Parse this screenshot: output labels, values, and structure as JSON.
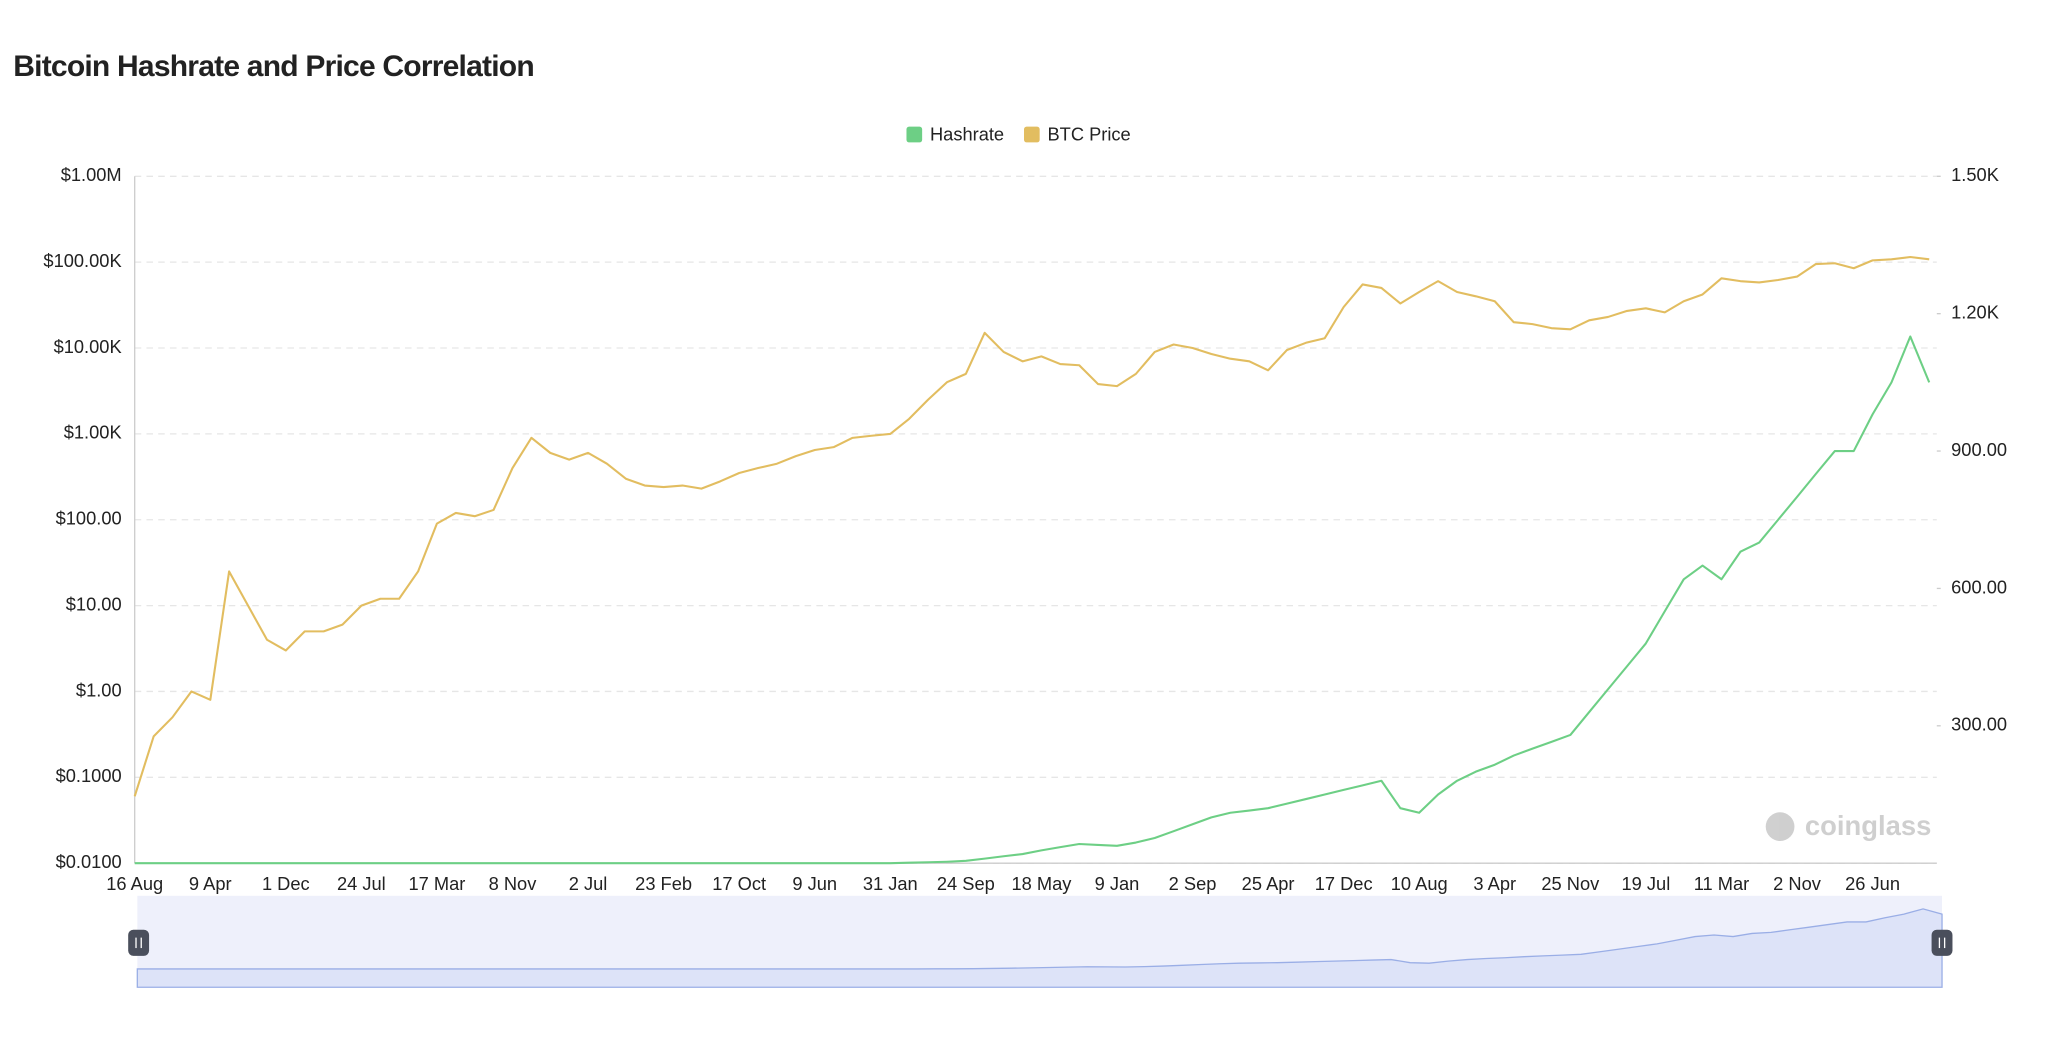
{
  "chart_data": {
    "type": "line",
    "title": "Bitcoin Hashrate and Price Correlation",
    "watermark": "coinglass",
    "categories": [
      "16 Aug",
      null,
      null,
      null,
      "9 Apr",
      null,
      null,
      null,
      "1 Dec",
      null,
      null,
      null,
      "24 Jul",
      null,
      null,
      null,
      "17 Mar",
      null,
      null,
      null,
      "8 Nov",
      null,
      null,
      null,
      "2 Jul",
      null,
      null,
      null,
      "23 Feb",
      null,
      null,
      null,
      "17 Oct",
      null,
      null,
      null,
      "9 Jun",
      null,
      null,
      null,
      "31 Jan",
      null,
      null,
      null,
      "24 Sep",
      null,
      null,
      null,
      "18 May",
      null,
      null,
      null,
      "9 Jan",
      null,
      null,
      null,
      "2 Sep",
      null,
      null,
      null,
      "25 Apr",
      null,
      null,
      null,
      "17 Dec",
      null,
      null,
      null,
      "10 Aug",
      null,
      null,
      null,
      "3 Apr",
      null,
      null,
      null,
      "25 Nov",
      null,
      null,
      null,
      "19 Jul",
      null,
      null,
      null,
      "11 Mar",
      null,
      null,
      null,
      "2 Nov",
      null,
      null,
      null,
      "26 Jun",
      null,
      null,
      null
    ],
    "series": [
      {
        "name": "Hashrate",
        "color": "#6dcf85",
        "axis": "y2",
        "values": [
          0,
          0,
          0,
          0,
          0,
          0,
          0,
          0,
          0,
          0,
          0,
          0,
          0,
          0,
          0,
          0,
          0,
          0,
          0,
          0,
          0,
          0,
          0,
          0,
          0,
          0,
          0,
          0,
          0,
          0,
          0,
          0,
          0,
          0,
          0,
          0,
          0,
          0,
          0,
          0,
          0,
          1,
          2,
          3,
          5,
          10,
          15,
          20,
          28,
          35,
          42,
          40,
          38,
          45,
          55,
          70,
          85,
          100,
          110,
          115,
          120,
          130,
          140,
          150,
          160,
          170,
          180,
          120,
          110,
          150,
          180,
          200,
          215,
          235,
          250,
          265,
          280,
          330,
          380,
          430,
          480,
          550,
          620,
          650,
          620,
          680,
          700,
          750,
          800,
          850,
          900,
          900,
          980,
          1050,
          1150,
          1050
        ]
      },
      {
        "name": "BTC Price",
        "color": "#e2bd60",
        "values": [
          0.06,
          0.3,
          0.5,
          1,
          0.8,
          25,
          10,
          4,
          3,
          5,
          5,
          6,
          10,
          12,
          12,
          25,
          90,
          120,
          110,
          130,
          400,
          900,
          600,
          500,
          600,
          450,
          300,
          250,
          240,
          250,
          230,
          280,
          350,
          400,
          450,
          550,
          650,
          700,
          900,
          950,
          1000,
          1500,
          2500,
          4000,
          5000,
          15000,
          9000,
          7000,
          8000,
          6500,
          6300,
          3800,
          3600,
          5000,
          9000,
          11000,
          10000,
          8500,
          7500,
          7000,
          5500,
          9500,
          11500,
          13000,
          30000,
          55000,
          50000,
          33000,
          45000,
          60000,
          45000,
          40000,
          35000,
          20000,
          19000,
          17000,
          16500,
          21000,
          23000,
          27000,
          29000,
          26000,
          35000,
          42000,
          65000,
          60000,
          58000,
          62000,
          68000,
          95000,
          97000,
          85000,
          105000,
          108000,
          115000,
          108000
        ]
      }
    ],
    "ylim": [
      0.01,
      1000000
    ],
    "log_y": true,
    "yticks": [
      {
        "value": 0.01,
        "label": "$0.0100"
      },
      {
        "value": 0.1,
        "label": "$0.1000"
      },
      {
        "value": 1,
        "label": "$1.00"
      },
      {
        "value": 10,
        "label": "$10.00"
      },
      {
        "value": 100,
        "label": "$100.00"
      },
      {
        "value": 1000,
        "label": "$1.00K"
      },
      {
        "value": 10000,
        "label": "$10.00K"
      },
      {
        "value": 100000,
        "label": "$100.00K"
      },
      {
        "value": 1000000,
        "label": "$1.00M"
      }
    ],
    "y2lim": [
      0,
      1500
    ],
    "y2ticks": [
      {
        "value": 300,
        "label": "300.00"
      },
      {
        "value": 600,
        "label": "600.00"
      },
      {
        "value": 900,
        "label": "900.00"
      },
      {
        "value": 1200,
        "label": "1.20K"
      },
      {
        "value": 1500,
        "label": "1.50K"
      }
    ],
    "grid": true,
    "legend": "top"
  }
}
